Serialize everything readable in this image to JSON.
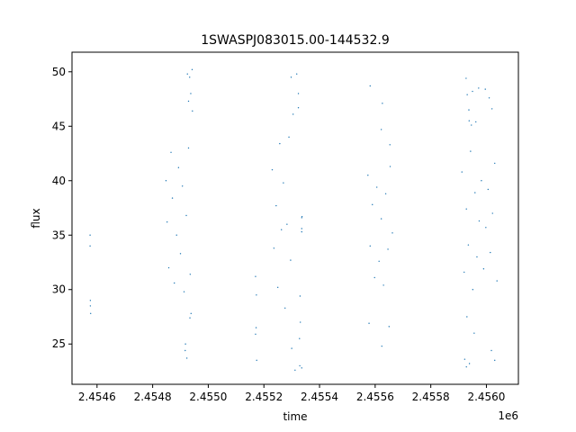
{
  "chart_data": {
    "type": "scatter",
    "title": "1SWASPJ083015.00-144532.9",
    "xlabel": "time",
    "ylabel": "flux",
    "x_offset_label": "1e6",
    "xlim": [
      2454510,
      2456115
    ],
    "ylim": [
      21.3,
      51.8
    ],
    "x_ticks": [
      2454600,
      2454800,
      2455000,
      2455200,
      2455400,
      2455600,
      2455800,
      2456000
    ],
    "x_tick_labels": [
      "2.4546",
      "2.4548",
      "2.4550",
      "2.4552",
      "2.4554",
      "2.4556",
      "2.4558",
      "2.4560"
    ],
    "y_ticks": [
      25,
      30,
      35,
      40,
      45,
      50
    ],
    "y_tick_labels": [
      "25",
      "30",
      "35",
      "40",
      "45",
      "50"
    ],
    "grid": false,
    "legend": false,
    "marker_color": "#1f77b4",
    "series": [
      {
        "points": [
          [
            2454575,
            35.0
          ],
          [
            2454575,
            34.0
          ],
          [
            2454576,
            29.0
          ],
          [
            2454576,
            28.5
          ],
          [
            2454577,
            27.8
          ],
          [
            2454848,
            40.0
          ],
          [
            2454852,
            36.2
          ],
          [
            2454858,
            32.0
          ],
          [
            2454866,
            42.6
          ],
          [
            2454871,
            38.4
          ],
          [
            2454878,
            30.6
          ],
          [
            2454886,
            35.0
          ],
          [
            2454893,
            41.2
          ],
          [
            2454900,
            33.3
          ],
          [
            2454907,
            39.5
          ],
          [
            2454913,
            29.8
          ],
          [
            2454921,
            36.8
          ],
          [
            2454929,
            43.0
          ],
          [
            2454935,
            31.4
          ],
          [
            2454918,
            25.0
          ],
          [
            2454917,
            24.4
          ],
          [
            2454923,
            23.7
          ],
          [
            2454934,
            27.4
          ],
          [
            2454938,
            27.8
          ],
          [
            2454925,
            49.8
          ],
          [
            2454933,
            49.5
          ],
          [
            2454942,
            50.2
          ],
          [
            2454937,
            48.0
          ],
          [
            2454943,
            46.4
          ],
          [
            2454929,
            47.3
          ],
          [
            2455170,
            31.2
          ],
          [
            2455172,
            26.5
          ],
          [
            2455170,
            25.9
          ],
          [
            2455174,
            23.5
          ],
          [
            2455173,
            29.5
          ],
          [
            2455230,
            41.0
          ],
          [
            2455236,
            33.8
          ],
          [
            2455244,
            37.7
          ],
          [
            2455250,
            30.2
          ],
          [
            2455257,
            43.4
          ],
          [
            2455263,
            35.5
          ],
          [
            2455270,
            39.8
          ],
          [
            2455276,
            28.3
          ],
          [
            2455283,
            36.0
          ],
          [
            2455290,
            44.0
          ],
          [
            2455296,
            32.7
          ],
          [
            2455300,
            24.6
          ],
          [
            2455312,
            22.6
          ],
          [
            2455298,
            49.5
          ],
          [
            2455305,
            46.1
          ],
          [
            2455318,
            49.8
          ],
          [
            2455324,
            46.7
          ],
          [
            2455330,
            29.4
          ],
          [
            2455336,
            36.6
          ],
          [
            2455331,
            27.0
          ],
          [
            2455328,
            25.5
          ],
          [
            2455329,
            23.0
          ],
          [
            2455336,
            22.8
          ],
          [
            2455336,
            35.6
          ],
          [
            2455336,
            35.3
          ],
          [
            2455337,
            36.7
          ],
          [
            2455324,
            48.0
          ],
          [
            2455574,
            40.5
          ],
          [
            2455582,
            34.0
          ],
          [
            2455590,
            37.8
          ],
          [
            2455598,
            31.1
          ],
          [
            2455606,
            39.4
          ],
          [
            2455614,
            32.6
          ],
          [
            2455622,
            36.5
          ],
          [
            2455630,
            30.4
          ],
          [
            2455638,
            38.8
          ],
          [
            2455646,
            33.7
          ],
          [
            2455654,
            41.3
          ],
          [
            2455662,
            35.2
          ],
          [
            2455578,
            26.9
          ],
          [
            2455582,
            48.7
          ],
          [
            2455622,
            44.7
          ],
          [
            2455624,
            24.8
          ],
          [
            2455653,
            43.3
          ],
          [
            2455650,
            26.6
          ],
          [
            2455626,
            47.1
          ],
          [
            2455912,
            40.8
          ],
          [
            2455920,
            31.6
          ],
          [
            2455928,
            37.4
          ],
          [
            2455935,
            34.1
          ],
          [
            2455943,
            42.7
          ],
          [
            2455951,
            30.0
          ],
          [
            2455959,
            38.9
          ],
          [
            2455966,
            33.0
          ],
          [
            2455974,
            36.3
          ],
          [
            2455982,
            40.0
          ],
          [
            2455990,
            31.9
          ],
          [
            2455998,
            35.7
          ],
          [
            2456006,
            39.2
          ],
          [
            2456014,
            33.4
          ],
          [
            2456022,
            37.0
          ],
          [
            2456030,
            41.6
          ],
          [
            2456038,
            30.8
          ],
          [
            2455927,
            49.4
          ],
          [
            2455931,
            47.9
          ],
          [
            2455937,
            46.5
          ],
          [
            2455938,
            45.5
          ],
          [
            2455950,
            48.2
          ],
          [
            2455962,
            45.4
          ],
          [
            2455946,
            45.1
          ],
          [
            2455972,
            48.5
          ],
          [
            2455922,
            23.6
          ],
          [
            2455928,
            22.9
          ],
          [
            2455939,
            23.2
          ],
          [
            2455930,
            27.5
          ],
          [
            2455956,
            26.0
          ],
          [
            2455996,
            48.4
          ],
          [
            2456010,
            47.6
          ],
          [
            2456020,
            46.6
          ],
          [
            2456018,
            24.4
          ],
          [
            2456030,
            23.5
          ]
        ]
      }
    ]
  }
}
